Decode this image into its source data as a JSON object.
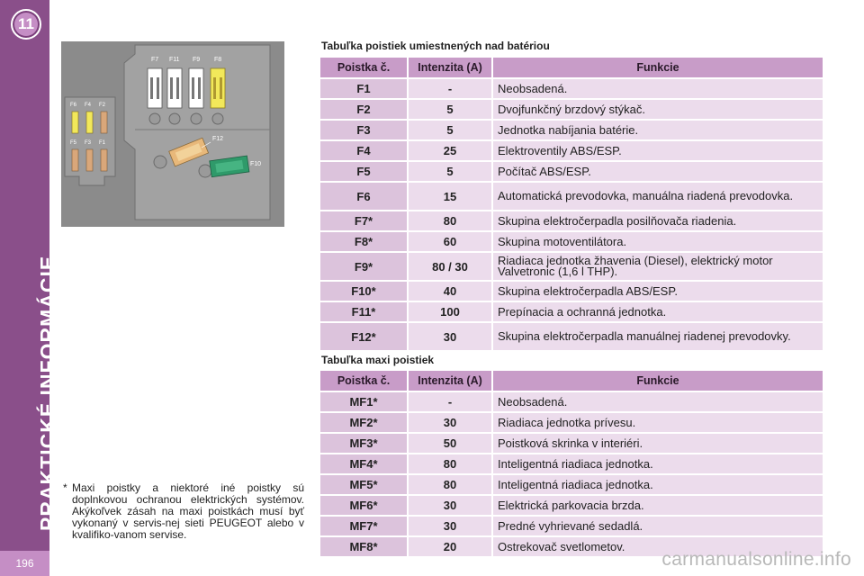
{
  "sidebar": {
    "chapter_number": "11",
    "vertical_title": "PRAKTICKÉ INFORMÁCIE",
    "page_number": "196"
  },
  "diagram": {
    "fuse_labels": [
      "F7",
      "F11",
      "F9",
      "F8",
      "F6",
      "F4",
      "F2",
      "F5",
      "F3",
      "F1",
      "F12",
      "F10"
    ],
    "colors": {
      "background": "#8b8b8b",
      "panel": "#9c9c9c",
      "white_fuse": "#ffffff",
      "yellow_fuse": "#f2e85a",
      "orange_fuse": "#e8b87a",
      "green_fuse": "#2f9a6a",
      "tan_fuse": "#d9a77a"
    }
  },
  "table1": {
    "title": "Tabuľka poistiek umiestnených nad batériou",
    "headers": [
      "Poistka č.",
      "Intenzita (A)",
      "Funkcie"
    ],
    "rows": [
      {
        "fuse": "F1",
        "amp": "-",
        "func": "Neobsadená."
      },
      {
        "fuse": "F2",
        "amp": "5",
        "func": "Dvojfunkčný brzdový stýkač."
      },
      {
        "fuse": "F3",
        "amp": "5",
        "func": "Jednotka nabíjania batérie."
      },
      {
        "fuse": "F4",
        "amp": "25",
        "func": "Elektroventily ABS/ESP."
      },
      {
        "fuse": "F5",
        "amp": "5",
        "func": "Počítač ABS/ESP."
      },
      {
        "fuse": "F6",
        "amp": "15",
        "func": "Automatická prevodovka, manuálna riadená prevodovka."
      },
      {
        "fuse": "F7*",
        "amp": "80",
        "func": "Skupina elektročerpadla posilňovača riadenia."
      },
      {
        "fuse": "F8*",
        "amp": "60",
        "func": "Skupina motoventilátora."
      },
      {
        "fuse": "F9*",
        "amp": "80 / 30",
        "func": "Riadiaca jednotka žhavenia (Diesel), elektrický motor Valvetronic (1,6 l THP)."
      },
      {
        "fuse": "F10*",
        "amp": "40",
        "func": "Skupina elektročerpadla ABS/ESP."
      },
      {
        "fuse": "F11*",
        "amp": "100",
        "func": "Prepínacia a ochranná jednotka."
      },
      {
        "fuse": "F12*",
        "amp": "30",
        "func": "Skupina elektročerpadla manuálnej riadenej prevodovky."
      }
    ]
  },
  "table2": {
    "title": "Tabuľka maxi poistiek",
    "headers": [
      "Poistka č.",
      "Intenzita (A)",
      "Funkcie"
    ],
    "rows": [
      {
        "fuse": "MF1*",
        "amp": "-",
        "func": "Neobsadená."
      },
      {
        "fuse": "MF2*",
        "amp": "30",
        "func": "Riadiaca jednotka prívesu."
      },
      {
        "fuse": "MF3*",
        "amp": "50",
        "func": "Poistková skrinka v interiéri."
      },
      {
        "fuse": "MF4*",
        "amp": "80",
        "func": "Inteligentná riadiaca jednotka."
      },
      {
        "fuse": "MF5*",
        "amp": "80",
        "func": "Inteligentná riadiaca jednotka."
      },
      {
        "fuse": "MF6*",
        "amp": "30",
        "func": "Elektrická parkovacia brzda."
      },
      {
        "fuse": "MF7*",
        "amp": "30",
        "func": "Predné vyhrievané sedadlá."
      },
      {
        "fuse": "MF8*",
        "amp": "20",
        "func": "Ostrekovač svetlometov."
      }
    ]
  },
  "note": {
    "star": "*",
    "text": "Maxi poistky a niektoré iné poistky sú doplnkovou ochranou elektrických systémov. Akýkoľvek zásah na maxi poistkách musí byť vykonaný v servis-nej sieti PEUGEOT alebo v kvalifiko-vanom servise."
  },
  "watermark": "carmanualsonline.info"
}
